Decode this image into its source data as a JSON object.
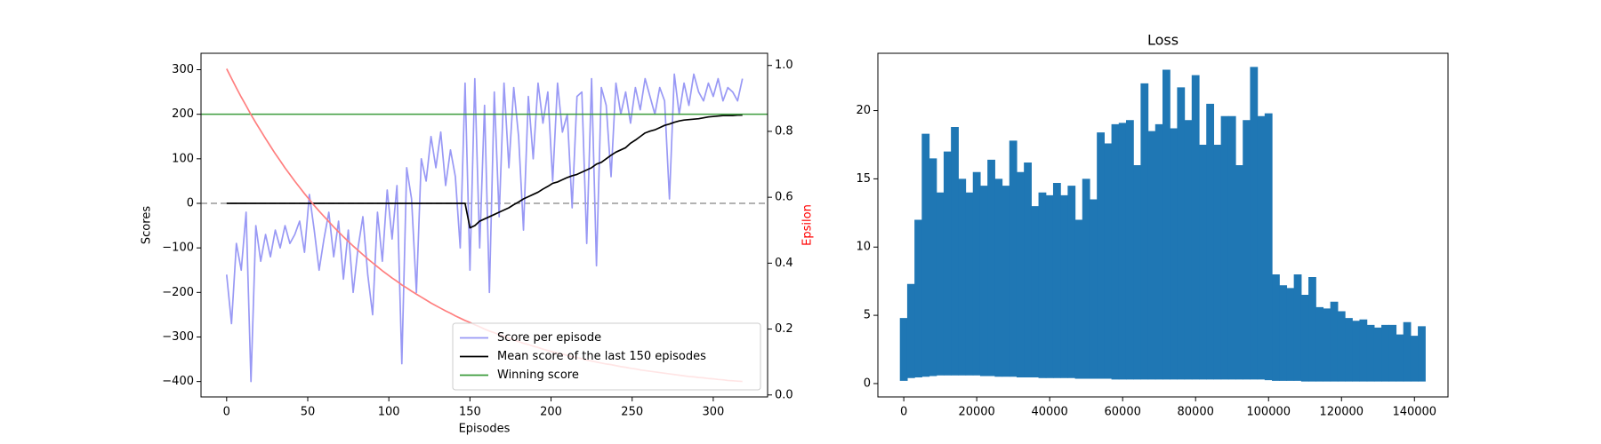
{
  "chart_data": [
    {
      "type": "line",
      "xlabel": "Episodes",
      "ylabel": "Scores",
      "y2label": "Epsilon",
      "y2label_color": "#ff0000",
      "xlim": [
        -15.8,
        333.5
      ],
      "ylim": [
        -434.6,
        336.9
      ],
      "y2lim": [
        -0.006,
        1.037
      ],
      "xticks": [
        0,
        50,
        100,
        150,
        200,
        250,
        300
      ],
      "yticks": [
        {
          "value": -400,
          "label": "−400"
        },
        {
          "value": -300,
          "label": "−300"
        },
        {
          "value": -200,
          "label": "−200"
        },
        {
          "value": -100,
          "label": "−100"
        },
        0,
        100,
        200,
        300
      ],
      "y2ticks": [
        {
          "value": 0,
          "label": "0.0"
        },
        0.2,
        0.4,
        0.6,
        0.8,
        {
          "value": 1,
          "label": "1.0"
        }
      ],
      "legend": "lower right",
      "hlines": [
        {
          "value": 0,
          "color": "#999999",
          "dashed": true
        }
      ],
      "x": [
        0,
        3,
        6,
        9,
        12,
        15,
        18,
        21,
        24,
        27,
        30,
        33,
        36,
        39,
        42,
        45,
        48,
        51,
        54,
        57,
        60,
        63,
        66,
        69,
        72,
        75,
        78,
        81,
        84,
        87,
        90,
        93,
        96,
        99,
        102,
        105,
        108,
        111,
        114,
        117,
        120,
        123,
        126,
        129,
        132,
        135,
        138,
        141,
        144,
        147,
        150,
        153,
        156,
        159,
        162,
        165,
        168,
        171,
        174,
        177,
        180,
        183,
        186,
        189,
        192,
        195,
        198,
        201,
        204,
        207,
        210,
        213,
        216,
        219,
        222,
        225,
        228,
        231,
        234,
        237,
        240,
        243,
        246,
        249,
        252,
        255,
        258,
        261,
        264,
        267,
        270,
        273,
        276,
        279,
        282,
        285,
        288,
        291,
        294,
        297,
        300,
        303,
        306,
        309,
        312,
        315,
        318
      ],
      "series": [
        {
          "name": "Score per episode",
          "color": "#9999f5",
          "values": [
            -160,
            -270,
            -90,
            -150,
            -20,
            -400,
            -50,
            -130,
            -70,
            -120,
            -60,
            -100,
            -50,
            -90,
            -70,
            -40,
            -110,
            20,
            -60,
            -150,
            -80,
            -20,
            -120,
            -40,
            -170,
            -60,
            -200,
            -100,
            -30,
            -160,
            -250,
            -20,
            -130,
            30,
            -80,
            40,
            -360,
            80,
            10,
            -200,
            100,
            50,
            150,
            80,
            160,
            40,
            120,
            60,
            -100,
            270,
            -150,
            280,
            -100,
            220,
            -200,
            250,
            -30,
            270,
            80,
            260,
            150,
            -60,
            240,
            100,
            270,
            180,
            250,
            50,
            270,
            160,
            200,
            -10,
            240,
            250,
            -90,
            280,
            -140,
            260,
            220,
            60,
            270,
            200,
            250,
            180,
            260,
            210,
            280,
            240,
            200,
            260,
            230,
            10,
            290,
            200,
            270,
            220,
            290,
            250,
            230,
            270,
            240,
            280,
            230,
            260,
            250,
            230,
            280
          ]
        },
        {
          "name": "Mean score of the last 150 episodes",
          "color": "#000000",
          "values": [
            0,
            0,
            0,
            0,
            0,
            0,
            0,
            0,
            0,
            0,
            0,
            0,
            0,
            0,
            0,
            0,
            0,
            0,
            0,
            0,
            0,
            0,
            0,
            0,
            0,
            0,
            0,
            0,
            0,
            0,
            0,
            0,
            0,
            0,
            0,
            0,
            0,
            0,
            0,
            0,
            0,
            0,
            0,
            0,
            0,
            0,
            0,
            0,
            0,
            0,
            -55,
            -50,
            -40,
            -35,
            -30,
            -25,
            -20,
            -15,
            -10,
            -3,
            3,
            10,
            15,
            20,
            25,
            32,
            38,
            45,
            48,
            53,
            58,
            62,
            65,
            70,
            75,
            80,
            88,
            92,
            100,
            108,
            115,
            120,
            125,
            135,
            142,
            150,
            158,
            162,
            165,
            170,
            175,
            178,
            182,
            185,
            187,
            188,
            189,
            190,
            192,
            194,
            195,
            196,
            197,
            197,
            197,
            198,
            198
          ]
        },
        {
          "name": "Winning score",
          "color": "#3c9c3c",
          "hline": 200
        },
        {
          "color": "#ff7f7f",
          "axis": "y2",
          "values": [
            0.99,
            0.961,
            0.932,
            0.904,
            0.878,
            0.851,
            0.826,
            0.802,
            0.778,
            0.755,
            0.732,
            0.711,
            0.689,
            0.669,
            0.649,
            0.63,
            0.611,
            0.593,
            0.575,
            0.558,
            0.542,
            0.526,
            0.51,
            0.495,
            0.48,
            0.466,
            0.452,
            0.439,
            0.426,
            0.413,
            0.401,
            0.389,
            0.377,
            0.366,
            0.355,
            0.345,
            0.334,
            0.325,
            0.315,
            0.306,
            0.297,
            0.288,
            0.279,
            0.271,
            0.263,
            0.255,
            0.248,
            0.24,
            0.233,
            0.226,
            0.22,
            0.213,
            0.207,
            0.2,
            0.194,
            0.189,
            0.183,
            0.178,
            0.172,
            0.167,
            0.162,
            0.157,
            0.153,
            0.148,
            0.144,
            0.139,
            0.135,
            0.131,
            0.127,
            0.124,
            0.12,
            0.116,
            0.113,
            0.11,
            0.106,
            0.103,
            0.1,
            0.097,
            0.094,
            0.092,
            0.089,
            0.086,
            0.084,
            0.081,
            0.079,
            0.076,
            0.074,
            0.072,
            0.07,
            0.068,
            0.066,
            0.064,
            0.062,
            0.06,
            0.058,
            0.056,
            0.055,
            0.053,
            0.052,
            0.05,
            0.049,
            0.047,
            0.046,
            0.044,
            0.043,
            0.042,
            0.041
          ]
        }
      ]
    },
    {
      "type": "area",
      "title": "Loss",
      "color": "#1f77b4",
      "xlim": [
        -7100,
        149200
      ],
      "ylim": [
        -0.98,
        24.2
      ],
      "xticks": [
        0,
        20000,
        40000,
        60000,
        80000,
        100000,
        120000,
        140000
      ],
      "yticks": [
        0,
        5,
        10,
        15,
        20
      ],
      "x": [
        0,
        2000,
        4000,
        6000,
        8000,
        10000,
        12000,
        14000,
        16000,
        18000,
        20000,
        22000,
        24000,
        26000,
        28000,
        30000,
        32000,
        34000,
        36000,
        38000,
        40000,
        42000,
        44000,
        46000,
        48000,
        50000,
        52000,
        54000,
        56000,
        58000,
        60000,
        62000,
        64000,
        66000,
        68000,
        70000,
        72000,
        74000,
        76000,
        78000,
        80000,
        82000,
        84000,
        86000,
        88000,
        90000,
        92000,
        94000,
        96000,
        98000,
        100000,
        102000,
        104000,
        106000,
        108000,
        110000,
        112000,
        114000,
        116000,
        118000,
        120000,
        122000,
        124000,
        126000,
        128000,
        130000,
        132000,
        134000,
        136000,
        138000,
        140000,
        142000
      ],
      "values": [
        4.8,
        7.3,
        12,
        18.3,
        16.5,
        14,
        17,
        18.8,
        15,
        14,
        15.5,
        14.5,
        16.4,
        15,
        14.5,
        17.8,
        15.5,
        16.2,
        13,
        14,
        13.8,
        14.7,
        13.8,
        14.5,
        12,
        15,
        13.5,
        18.4,
        17.6,
        19,
        19.1,
        19.3,
        16,
        22,
        18.5,
        19,
        23,
        18.7,
        21.7,
        19.3,
        22.6,
        17.5,
        20.5,
        17.5,
        19.6,
        19.6,
        16,
        19.3,
        23.2,
        19.6,
        19.8,
        8,
        7.2,
        7,
        8,
        6.5,
        7.8,
        5.6,
        5.5,
        6,
        5.3,
        4.8,
        4.6,
        4.7,
        4.3,
        4.1,
        4.3,
        4.3,
        3.6,
        4.5,
        3.5,
        4.2
      ],
      "lower": [
        0.2,
        0.4,
        0.45,
        0.5,
        0.55,
        0.6,
        0.6,
        0.6,
        0.6,
        0.6,
        0.6,
        0.55,
        0.55,
        0.5,
        0.5,
        0.5,
        0.45,
        0.45,
        0.45,
        0.4,
        0.4,
        0.4,
        0.4,
        0.4,
        0.35,
        0.35,
        0.35,
        0.35,
        0.35,
        0.3,
        0.3,
        0.3,
        0.3,
        0.3,
        0.3,
        0.3,
        0.3,
        0.3,
        0.3,
        0.3,
        0.3,
        0.3,
        0.3,
        0.3,
        0.3,
        0.3,
        0.3,
        0.3,
        0.3,
        0.3,
        0.25,
        0.2,
        0.2,
        0.2,
        0.2,
        0.15,
        0.15,
        0.15,
        0.15,
        0.15,
        0.15,
        0.15,
        0.15,
        0.15,
        0.15,
        0.15,
        0.15,
        0.15,
        0.15,
        0.15,
        0.15,
        0.15
      ]
    }
  ]
}
